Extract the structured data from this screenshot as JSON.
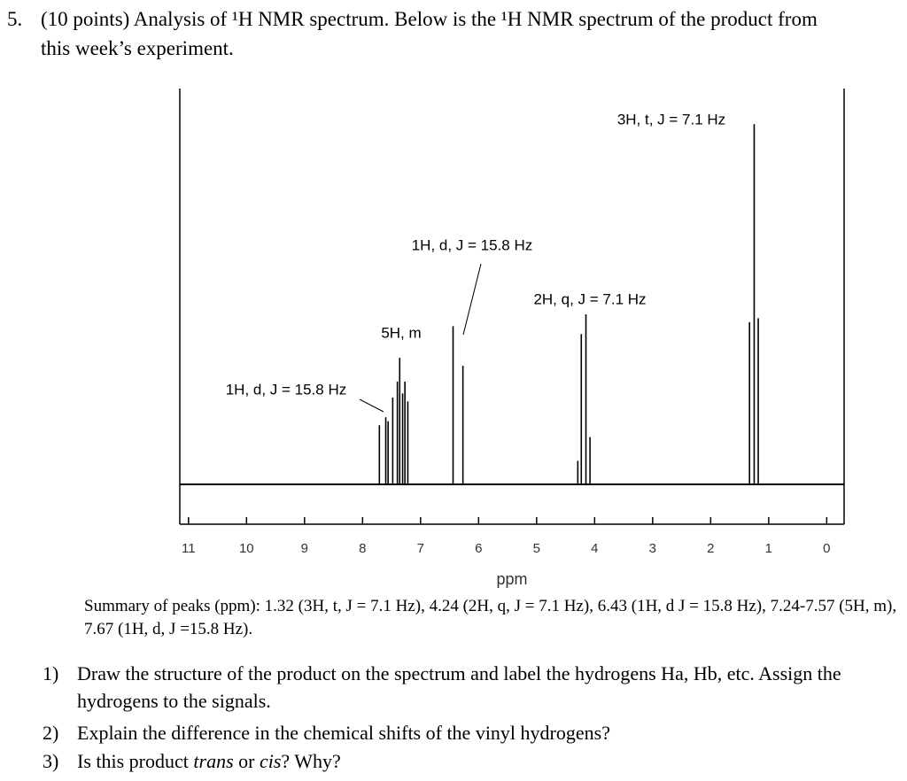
{
  "question": {
    "number": "5.",
    "text": "(10 points) Analysis of ¹H NMR spectrum. Below is the ¹H NMR spectrum of the product from this week’s experiment."
  },
  "spectrum": {
    "type": "line",
    "x": [
      7.71,
      7.6,
      7.56,
      7.48,
      7.4,
      7.36,
      7.31,
      7.27,
      7.22,
      6.44,
      6.27,
      4.29,
      4.23,
      4.15,
      4.08,
      1.33,
      1.25,
      1.18
    ],
    "values": [
      15,
      17,
      16,
      22,
      26,
      32,
      23,
      26,
      21,
      40,
      30,
      6,
      38,
      43,
      12,
      41,
      91,
      42
    ],
    "xlim": [
      11.15,
      -0.3
    ],
    "ylim": [
      -10,
      100
    ],
    "xticks": [
      11,
      10,
      9,
      8,
      7,
      6,
      5,
      4,
      3,
      2,
      1,
      0
    ],
    "xlabel": "ppm",
    "annotations": [
      "3H, t, J = 7.1 Hz",
      "1H, d, J = 15.8 Hz",
      "2H, q, J = 7.1 Hz",
      "5H, m",
      "1H, d, J = 15.8 Hz"
    ]
  },
  "summary": "Summary of peaks (ppm): 1.32 (3H, t, J = 7.1 Hz), 4.24 (2H, q, J = 7.1 Hz), 6.43 (1H, d J = 15.8 Hz), 7.24-7.57 (5H, m), 7.67 (1H, d, J =15.8 Hz).",
  "questions": [
    {
      "number": "1)",
      "parts": [
        "Draw the structure of the product on the spectrum and label the hydrogens Ha, Hb, etc. Assign the hydrogens to the signals."
      ]
    },
    {
      "number": "2)",
      "parts": [
        "Explain the difference in the chemical shifts of the vinyl hydrogens?"
      ]
    },
    {
      "number": "3)",
      "parts": [
        "Is this product ",
        "trans",
        " or ",
        "cis",
        "? Why?"
      ]
    }
  ]
}
